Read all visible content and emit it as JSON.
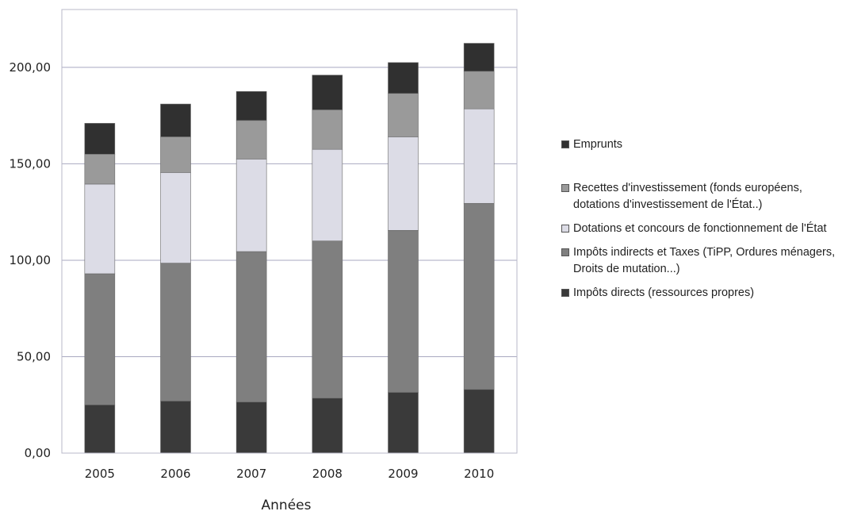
{
  "chart_data": {
    "type": "bar",
    "stacked": true,
    "categories": [
      "2005",
      "2006",
      "2007",
      "2008",
      "2009",
      "2010"
    ],
    "xlabel": "Années",
    "ylabel": "",
    "ylim": [
      0,
      230
    ],
    "yticks": [
      0,
      50,
      100,
      150,
      200
    ],
    "ytick_labels": [
      "0,00",
      "50,00",
      "100,00",
      "150,00",
      "200,00"
    ],
    "grid": true,
    "legend_position": "right",
    "series": [
      {
        "name": "Impôts directs (ressources propres)",
        "color": "#3a3a3a",
        "values": [
          25,
          27,
          26.5,
          28.5,
          31.5,
          33
        ]
      },
      {
        "name": "Impôts indirects et Taxes (TiPP, Ordures ménagers, Droits de mutation...)",
        "color": "#7f7f7f",
        "values": [
          68,
          71.5,
          78,
          81.5,
          84,
          96.5
        ]
      },
      {
        "name": "Dotations et concours de fonctionnement de l'État",
        "color": "#dcdce6",
        "values": [
          46.5,
          47,
          48,
          47.5,
          48.5,
          49
        ]
      },
      {
        "name": "Recettes d'investissement (fonds européens, dotations d'investissement de l'État..)",
        "color": "#9a9a9a",
        "values": [
          15.5,
          18.5,
          20,
          20.5,
          22.5,
          19.5
        ]
      },
      {
        "name": "Emprunts",
        "color": "#303030",
        "values": [
          16,
          17,
          15,
          18,
          16,
          14.5
        ]
      }
    ],
    "legend_order": [
      4,
      3,
      2,
      1,
      0
    ]
  }
}
